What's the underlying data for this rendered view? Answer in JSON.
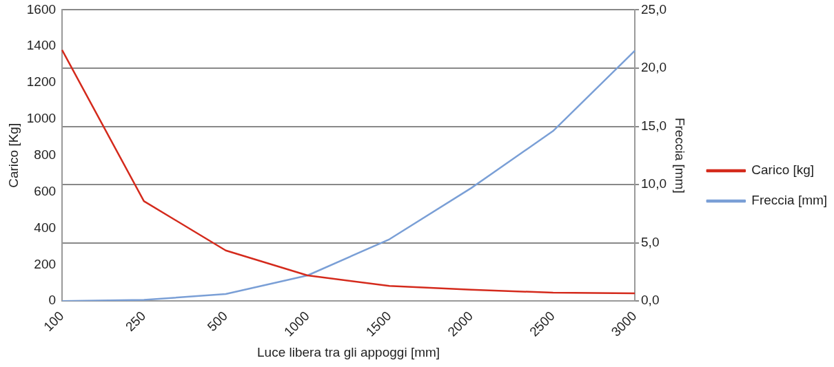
{
  "chart_data": {
    "type": "line",
    "xlabel": "Luce libera tra gli appoggi [mm]",
    "ylabel": "Carico [Kg]",
    "y2label": "Freccia [mm]",
    "categories": [
      "100",
      "250",
      "500",
      "1000",
      "1500",
      "2000",
      "2500",
      "3000"
    ],
    "series": [
      {
        "name": "Carico [kg]",
        "color": "#d42a1c",
        "values": [
          1380,
          549,
          278,
          141,
          83,
          62,
          46,
          42
        ]
      },
      {
        "name": "Freccia [mm]",
        "color": "#7a9fd6",
        "axis": "y2",
        "values": [
          0.0,
          0.1,
          0.6,
          2.2,
          5.3,
          9.7,
          14.6,
          21.5
        ]
      }
    ],
    "ylim": [
      0,
      1600
    ],
    "yticks": [
      0,
      200,
      400,
      600,
      800,
      1000,
      1200,
      1400,
      1600
    ],
    "y2lim": [
      0,
      25
    ],
    "y2ticks": [
      {
        "value": 0,
        "label": "0,0"
      },
      {
        "value": 5,
        "label": "5,0"
      },
      {
        "value": 10,
        "label": "10,0"
      },
      {
        "value": 15,
        "label": "15,0"
      },
      {
        "value": 20,
        "label": "20,0"
      },
      {
        "value": 25,
        "label": "25,0"
      }
    ],
    "grid": "y2",
    "legend": "right",
    "marker": "none",
    "line_style": "solid"
  }
}
